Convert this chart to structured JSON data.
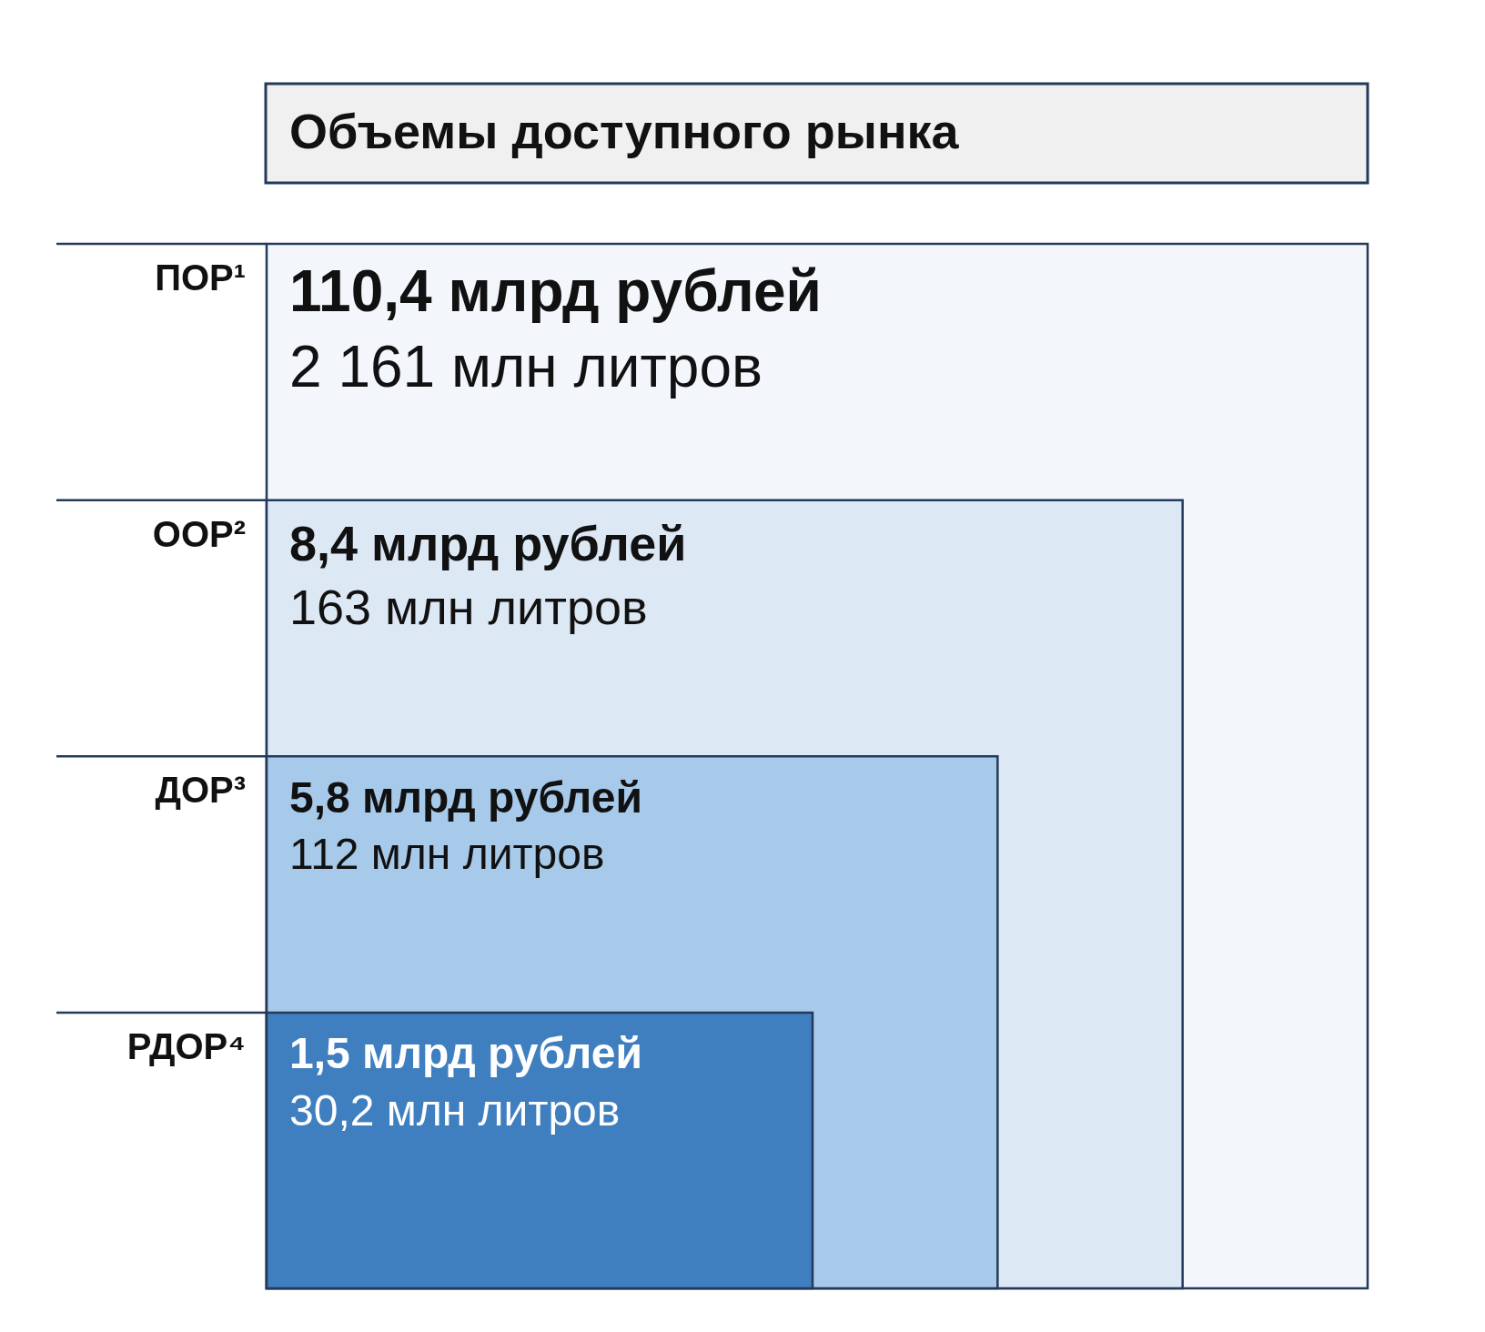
{
  "chart_data": {
    "type": "other",
    "title": "Объемы доступного рынка",
    "categories": [
      "ПОР¹",
      "ООР²",
      "ДОР³",
      "РДОР⁴"
    ],
    "series": [
      {
        "colors": [
          "#f3f7fc",
          "#dde8f5",
          "#a7c9ea",
          "#3f7fc0"
        ],
        "values": [
          110.4,
          8.4,
          5.8,
          1.5
        ],
        "value_labels": [
          "110,4 млрд рублей",
          "8,4 млрд рублей",
          "5,8 млрд рублей",
          "1,5 млрд рублей"
        ]
      },
      {
        "values": [
          2161,
          163,
          112,
          30.2
        ],
        "value_labels": [
          "2 161 млн литров",
          "163 млн литров",
          "112 млн литров",
          "30,2 млн литров"
        ]
      }
    ]
  }
}
